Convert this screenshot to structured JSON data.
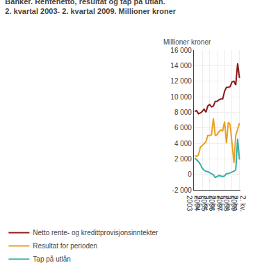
{
  "chart_data": {
    "type": "line",
    "title": "Banker. Rentenetto, resultat og tap på utlån.",
    "subtitle": "2. kvartal 2003- 2. kvartal 2009. Millioner kroner",
    "annotations": [
      "Millioner kroner"
    ],
    "categories": [
      "2. kv.\n2003",
      null,
      null,
      null,
      "2. kv.\n2004",
      null,
      null,
      null,
      "2. kv.\n2005",
      null,
      null,
      null,
      "2. kv.\n2006",
      null,
      null,
      null,
      "2. kv.\n2007",
      null,
      null,
      null,
      "2. kv.\n2008",
      null,
      null,
      null,
      "2. kv.\n2009"
    ],
    "series": [
      {
        "name": "Netto rente- og kredittprovisjonsinntekter",
        "color": "#8b1a1a",
        "values": [
          8100,
          8200,
          7800,
          7900,
          8100,
          8400,
          8000,
          8800,
          9000,
          8700,
          8800,
          9400,
          9400,
          9600,
          9700,
          9700,
          10700,
          11200,
          11200,
          11300,
          11900,
          12000,
          11500,
          14300,
          12400
        ]
      },
      {
        "name": "Resultat for perioden",
        "color": "#e8a020",
        "values": [
          2400,
          2300,
          2500,
          3500,
          3700,
          4000,
          4200,
          5000,
          5000,
          5100,
          7200,
          5000,
          5100,
          5500,
          5700,
          5600,
          6800,
          4000,
          6700,
          6400,
          4200,
          1500,
          5000,
          5800,
          6600
        ]
      },
      {
        "name": "Tap på utlån",
        "color": "#3aada8",
        "values": [
          2100,
          1900,
          1650,
          1300,
          800,
          550,
          400,
          350,
          200,
          100,
          -50,
          -400,
          -300,
          -150,
          -200,
          -300,
          -200,
          100,
          100,
          200,
          300,
          400,
          600,
          4600,
          1900
        ]
      }
    ],
    "ylim": [
      -2000,
      16000
    ],
    "yticks": [
      {
        "value": -2000,
        "label": "-2 000"
      },
      0,
      {
        "value": 2000,
        "label": "2 000"
      },
      {
        "value": 4000,
        "label": "4 000"
      },
      {
        "value": 6000,
        "label": "6 000"
      },
      {
        "value": 8000,
        "label": "8 000"
      },
      {
        "value": 10000,
        "label": "10 000"
      },
      {
        "value": 12000,
        "label": "12 000"
      },
      {
        "value": 14000,
        "label": "14 000"
      },
      {
        "value": 16000,
        "label": "16 000"
      }
    ],
    "grid": true,
    "legend": "bottom"
  }
}
